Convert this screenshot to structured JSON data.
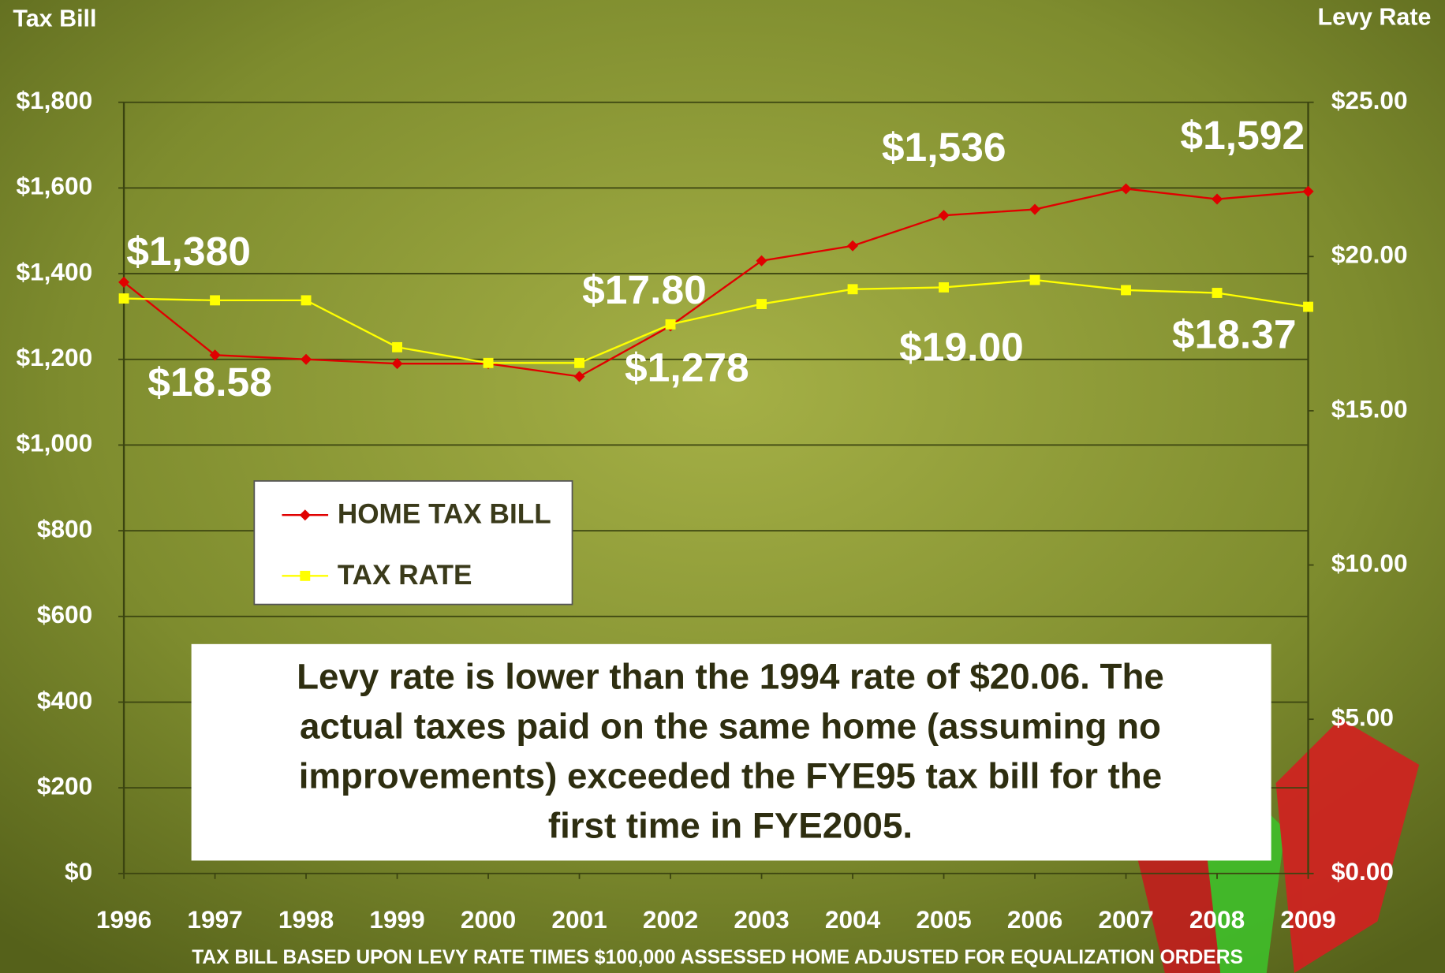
{
  "chart_data": {
    "type": "line",
    "y_axis_label": "Tax Bill",
    "y2_axis_label": "Levy Rate",
    "footnote": "TAX BILL BASED UPON LEVY RATE TIMES $100,000 ASSESSED HOME ADJUSTED FOR EQUALIZATION ORDERS",
    "annotation": [
      "Levy rate is lower than the 1994 rate of $20.06. The",
      "actual taxes paid on the same home (assuming no",
      "improvements) exceeded the FYE95 tax bill for the",
      "first time in FYE2005."
    ],
    "categories": [
      "1996",
      "1997",
      "1998",
      "1999",
      "2000",
      "2001",
      "2002",
      "2003",
      "2004",
      "2005",
      "2006",
      "2007",
      "2008",
      "2009"
    ],
    "series": [
      {
        "name": "HOME TAX BILL",
        "color": "#e00000",
        "marker": "diamond",
        "values": [
          1380,
          1210,
          1200,
          1190,
          1190,
          1160,
          1278,
          1430,
          1465,
          1536,
          1550,
          1598,
          1574,
          1592
        ],
        "value_labels": [
          "$1,380",
          null,
          null,
          null,
          null,
          null,
          "$1,278",
          null,
          null,
          "$1,536",
          null,
          null,
          null,
          "$1,592"
        ]
      },
      {
        "name": "TAX RATE",
        "color": "#ffff00",
        "marker": "square",
        "axis": "y2",
        "values": [
          18.64,
          18.58,
          18.58,
          17.06,
          16.55,
          16.55,
          17.8,
          18.46,
          18.94,
          19.0,
          19.24,
          18.91,
          18.82,
          18.37
        ],
        "value_labels": [
          null,
          "$18.58",
          null,
          null,
          null,
          null,
          "$17.80",
          null,
          null,
          "$19.00",
          null,
          null,
          null,
          "$18.37"
        ]
      }
    ],
    "ylim": [
      0,
      1800
    ],
    "yticks": [
      {
        "value": 0,
        "label": "$0"
      },
      {
        "value": 200,
        "label": "$200"
      },
      {
        "value": 400,
        "label": "$400"
      },
      {
        "value": 600,
        "label": "$600"
      },
      {
        "value": 800,
        "label": "$800"
      },
      {
        "value": 1000,
        "label": "$1,000"
      },
      {
        "value": 1200,
        "label": "$1,200"
      },
      {
        "value": 1400,
        "label": "$1,400"
      },
      {
        "value": 1600,
        "label": "$1,600"
      },
      {
        "value": 1800,
        "label": "$1,800"
      }
    ],
    "y2lim": [
      0,
      25
    ],
    "y2ticks": [
      {
        "value": 0,
        "label": "$0.00"
      },
      {
        "value": 5,
        "label": "$5.00"
      },
      {
        "value": 10,
        "label": "$10.00"
      },
      {
        "value": 15,
        "label": "$15.00"
      },
      {
        "value": 20,
        "label": "$20.00"
      },
      {
        "value": 25,
        "label": "$25.00"
      }
    ],
    "grid": true
  }
}
